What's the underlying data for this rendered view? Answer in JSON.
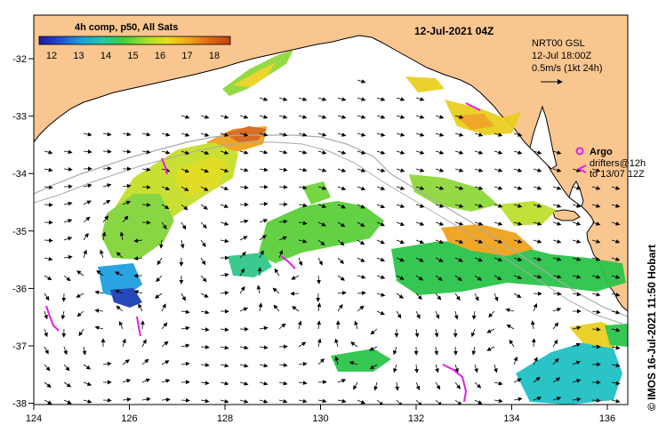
{
  "map": {
    "date_title": "12-Jul-2021 04Z",
    "colorbar": {
      "title": "4h comp, p50, All Sats",
      "ticks": [
        "12",
        "13",
        "14",
        "15",
        "16",
        "17",
        "18"
      ],
      "stops": [
        "#1a1a9c",
        "#1f4fd6",
        "#1fa0e0",
        "#23c9a6",
        "#3fd13a",
        "#9fe22b",
        "#e8e01e",
        "#f2a51a",
        "#e06a14",
        "#c2400f"
      ]
    },
    "currents_legend": {
      "line1": "NRT00 GSL",
      "line2": "12-Jul 18:00Z",
      "line3": "0.5m/s (1kt 24h)"
    },
    "argo_legend": {
      "argo_label": "Argo",
      "drifters_label": "drifters@12h",
      "drifters_label2": "to 13/07 12Z"
    },
    "credit": "© IMOS 16-Jul-2021 11:50 Hobart",
    "lon_ticks": [
      "124",
      "126",
      "128",
      "130",
      "132",
      "134",
      "136"
    ],
    "lat_ticks": [
      "-32",
      "-33",
      "-34",
      "-35",
      "-36",
      "-37",
      "-38"
    ],
    "colors": {
      "land": "#f9c690",
      "ocean": "#ffffff",
      "argo": "#e020e0",
      "bathymetry": "#aaaaaa"
    },
    "icons": {
      "argo_marker": "circle-marker-icon",
      "drifter_marker": "chevron-icon",
      "current_arrow": "arrow-icon"
    }
  }
}
